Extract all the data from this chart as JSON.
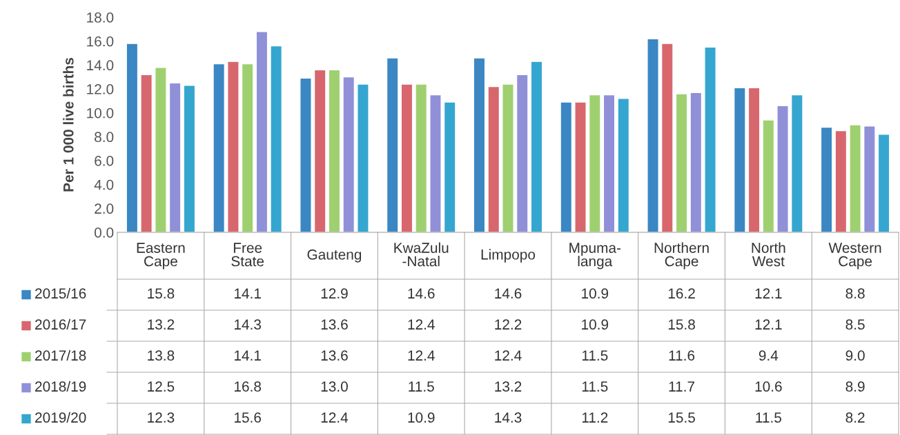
{
  "chart_data": {
    "type": "bar",
    "ylabel": "Per 1 000 live births",
    "categories": [
      "Eastern\nCape",
      "Free\nState",
      "Gauteng",
      "KwaZulu\n-Natal",
      "Limpopo",
      "Mpuma-\nlanga",
      "Northern\nCape",
      "North\nWest",
      "Western\nCape"
    ],
    "series": [
      {
        "name": "2015/16",
        "color": "#3a87c4",
        "values": [
          15.8,
          14.1,
          12.9,
          14.6,
          14.6,
          10.9,
          16.2,
          12.1,
          8.8
        ],
        "value_labels": [
          "15.8",
          "14.1",
          "12.9",
          "14.6",
          "14.6",
          "10.9",
          "16.2",
          "12.1",
          "8.8"
        ]
      },
      {
        "name": "2016/17",
        "color": "#d8676d",
        "values": [
          13.2,
          14.3,
          13.6,
          12.4,
          12.2,
          10.9,
          15.8,
          12.1,
          8.5
        ],
        "value_labels": [
          "13.2",
          "14.3",
          "13.6",
          "12.4",
          "12.2",
          "10.9",
          "15.8",
          "12.1",
          "8.5"
        ]
      },
      {
        "name": "2017/18",
        "color": "#9fd070",
        "values": [
          13.8,
          14.1,
          13.6,
          12.4,
          12.4,
          11.5,
          11.6,
          9.4,
          9.0
        ],
        "value_labels": [
          "13.8",
          "14.1",
          "13.6",
          "12.4",
          "12.4",
          "11.5",
          "11.6",
          "9.4",
          "9.0"
        ]
      },
      {
        "name": "2018/19",
        "color": "#9090d8",
        "values": [
          12.5,
          16.8,
          13.0,
          11.5,
          13.2,
          11.5,
          11.7,
          10.6,
          8.9
        ],
        "value_labels": [
          "12.5",
          "16.8",
          "13.0",
          "11.5",
          "13.2",
          "11.5",
          "11.7",
          "10.6",
          "8.9"
        ]
      },
      {
        "name": "2019/20",
        "color": "#35a6cf",
        "values": [
          12.3,
          15.6,
          12.4,
          10.9,
          14.3,
          11.2,
          15.5,
          11.5,
          8.2
        ],
        "value_labels": [
          "12.3",
          "15.6",
          "12.4",
          "10.9",
          "14.3",
          "11.2",
          "15.5",
          "11.5",
          "8.2"
        ]
      }
    ],
    "ylim": [
      0,
      18
    ],
    "yticks": [
      {
        "value": 0,
        "label": "0.0"
      },
      {
        "value": 2,
        "label": "2.0"
      },
      {
        "value": 4,
        "label": "4.0"
      },
      {
        "value": 6,
        "label": "6.0"
      },
      {
        "value": 8,
        "label": "8.0"
      },
      {
        "value": 10,
        "label": "10.0"
      },
      {
        "value": 12,
        "label": "12.0"
      },
      {
        "value": 14,
        "label": "14.0"
      },
      {
        "value": 16,
        "label": "16.0"
      },
      {
        "value": 18,
        "label": "18.0"
      }
    ],
    "legend": "bottom",
    "grid": false
  }
}
